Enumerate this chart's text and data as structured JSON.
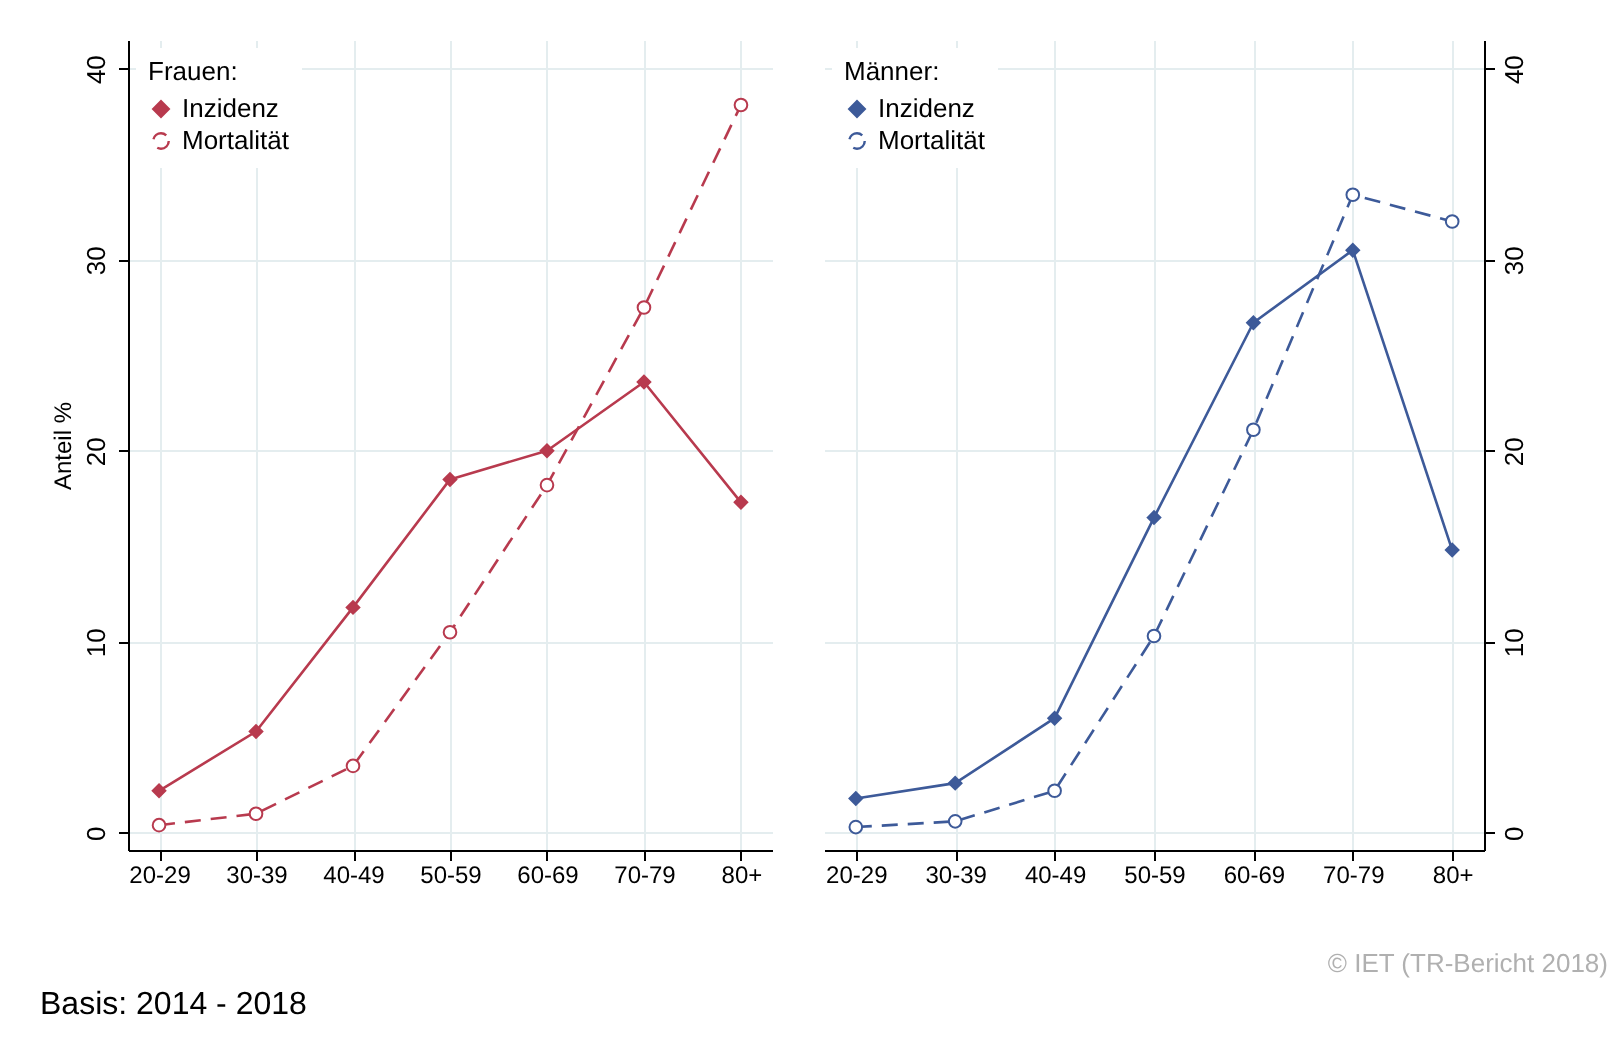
{
  "chart_data": [
    {
      "type": "line",
      "legend_title": "Frauen:",
      "ylabel": "Anteil %",
      "categories": [
        "20-29",
        "30-39",
        "40-49",
        "50-59",
        "60-69",
        "70-79",
        "80+"
      ],
      "ylim": [
        -0.9,
        41.5
      ],
      "yticks": [
        0,
        10,
        20,
        30,
        40
      ],
      "grid": true,
      "legend": "top left",
      "series": [
        {
          "name": "Inzidenz",
          "color": "#b83a4e",
          "marker": "diamond",
          "line_style": "solid",
          "values": [
            2.2,
            5.3,
            11.8,
            18.5,
            20.0,
            23.6,
            17.3
          ]
        },
        {
          "name": "Mortalität",
          "color": "#b83a4e",
          "marker": "circle",
          "line_style": "dashed",
          "values": [
            0.4,
            1.0,
            3.5,
            10.5,
            18.2,
            27.5,
            38.1
          ]
        }
      ],
      "annotations": [
        "Basis: 2014 - 2018"
      ]
    },
    {
      "type": "line",
      "legend_title": "Männer:",
      "categories": [
        "20-29",
        "30-39",
        "40-49",
        "50-59",
        "60-69",
        "70-79",
        "80+"
      ],
      "y2lim": [
        -0.9,
        41.5
      ],
      "y2ticks": [
        0,
        10,
        20,
        30,
        40
      ],
      "grid": true,
      "legend": "top left",
      "series": [
        {
          "name": "Inzidenz",
          "color": "#3d5a99",
          "marker": "diamond",
          "line_style": "solid",
          "axis": "y2",
          "values": [
            1.8,
            2.6,
            6.0,
            16.5,
            26.7,
            30.5,
            14.8
          ]
        },
        {
          "name": "Mortalität",
          "color": "#3d5a99",
          "marker": "circle",
          "line_style": "dashed",
          "axis": "y2",
          "values": [
            0.3,
            0.6,
            2.2,
            10.3,
            21.1,
            33.4,
            32.0
          ]
        }
      ],
      "annotations": [
        "© IET (TR-Bericht 2018)"
      ]
    }
  ]
}
